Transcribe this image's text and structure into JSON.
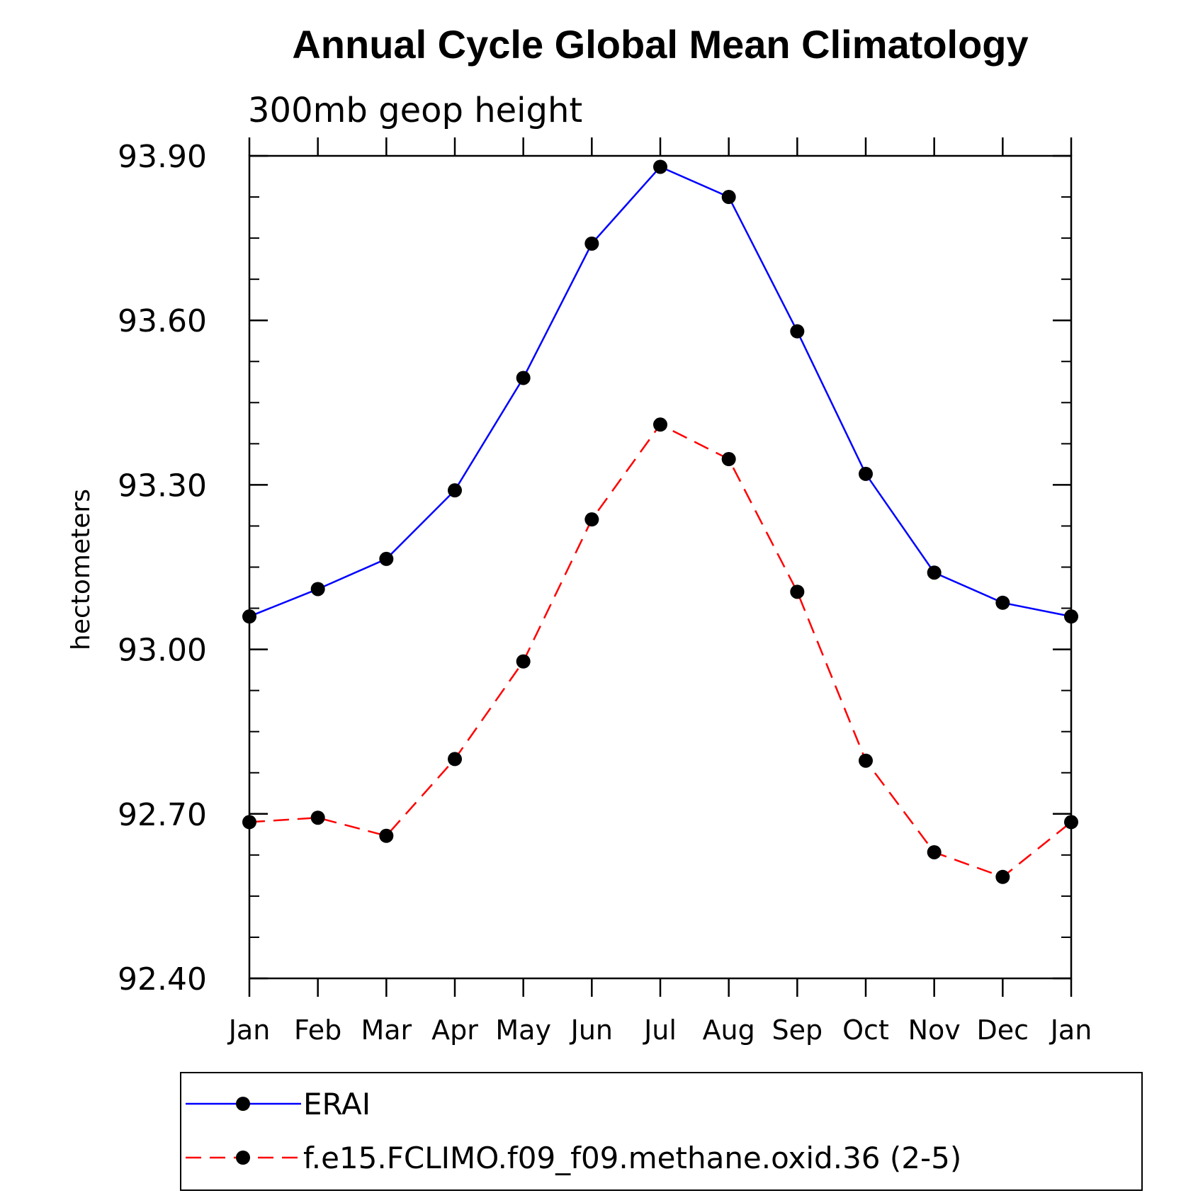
{
  "chart_data": {
    "type": "line",
    "title": "Annual Cycle Global Mean Climatology",
    "subtitle": "300mb geop height",
    "xlabel": "",
    "ylabel": "hectometers",
    "ylim": [
      92.4,
      93.9
    ],
    "yticks": [
      92.4,
      92.7,
      93.0,
      93.3,
      93.6,
      93.9
    ],
    "yticklabels": [
      "92.40",
      "92.70",
      "93.00",
      "93.30",
      "93.60",
      "93.90"
    ],
    "categories": [
      "Jan",
      "Feb",
      "Mar",
      "Apr",
      "May",
      "Jun",
      "Jul",
      "Aug",
      "Sep",
      "Oct",
      "Nov",
      "Dec",
      "Jan"
    ],
    "series": [
      {
        "name": "ERAI",
        "color": "#0000ff",
        "dash": "solid",
        "values": [
          93.06,
          93.11,
          93.165,
          93.29,
          93.495,
          93.74,
          93.88,
          93.825,
          93.58,
          93.32,
          93.14,
          93.085,
          93.06
        ]
      },
      {
        "name": "f.e15.FCLIMO.f09_f09.methane.oxid.36 (2-5)",
        "color": "#ff0000",
        "dash": "dashed",
        "values": [
          92.685,
          92.693,
          92.66,
          92.8,
          92.978,
          93.237,
          93.41,
          93.347,
          93.105,
          92.797,
          92.63,
          92.585,
          92.685
        ]
      }
    ],
    "legend_position": "bottom"
  }
}
